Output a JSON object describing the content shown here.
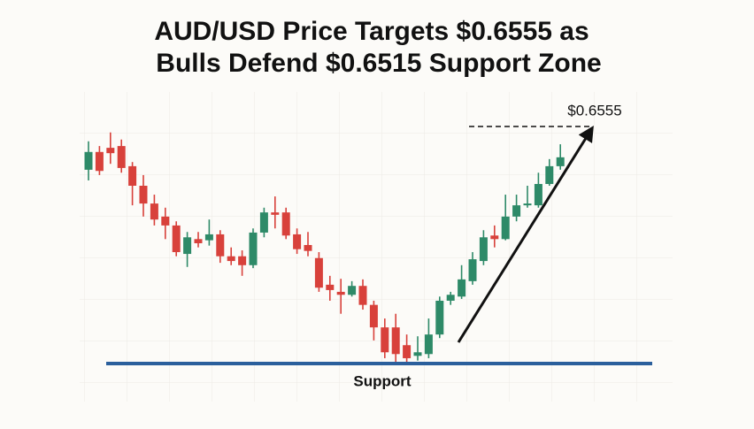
{
  "chart_data": {
    "type": "candlestick",
    "title": [
      "AUD/USD Price Targets $0.6555 as",
      "Bulls Defend $0.6515 Support Zone"
    ],
    "ylim": [
      0.6513,
      0.6561
    ],
    "up_color": "#2e8a68",
    "down_color": "#d8413b",
    "open": [
      0.65477,
      0.65507,
      0.65514,
      0.65517,
      0.65483,
      0.6545,
      0.6542,
      0.65398,
      0.65383,
      0.65335,
      0.6536,
      0.65358,
      0.65368,
      0.65331,
      0.65331,
      0.65316,
      0.65371,
      0.65405,
      0.65405,
      0.65368,
      0.6535,
      0.65328,
      0.65283,
      0.65271,
      0.65266,
      0.65281,
      0.65249,
      0.65211,
      0.65211,
      0.65181,
      0.65163,
      0.65166,
      0.65199,
      0.65256,
      0.65263,
      0.65289,
      0.65323,
      0.65366,
      0.6536,
      0.65398,
      0.65417,
      0.65417,
      0.65453,
      0.65483
    ],
    "high": [
      0.65525,
      0.65517,
      0.6554,
      0.65528,
      0.6549,
      0.65468,
      0.65435,
      0.65413,
      0.6539,
      0.65372,
      0.65372,
      0.65393,
      0.65375,
      0.65346,
      0.65341,
      0.65378,
      0.65413,
      0.65432,
      0.65413,
      0.65378,
      0.65372,
      0.65338,
      0.65298,
      0.65293,
      0.65289,
      0.65292,
      0.65256,
      0.65226,
      0.65234,
      0.65199,
      0.65196,
      0.65226,
      0.65263,
      0.65271,
      0.65316,
      0.65338,
      0.65375,
      0.65383,
      0.65435,
      0.65435,
      0.6545,
      0.65472,
      0.65495,
      0.6552
    ],
    "low": [
      0.65459,
      0.65468,
      0.65487,
      0.65472,
      0.65417,
      0.65398,
      0.65383,
      0.6536,
      0.65331,
      0.65313,
      0.65346,
      0.65349,
      0.6532,
      0.65316,
      0.65298,
      0.65311,
      0.65363,
      0.65378,
      0.6536,
      0.65335,
      0.65331,
      0.65271,
      0.65256,
      0.65234,
      0.65263,
      0.65241,
      0.65189,
      0.65159,
      0.65152,
      0.65152,
      0.65155,
      0.65159,
      0.65193,
      0.65249,
      0.65259,
      0.65283,
      0.65316,
      0.65346,
      0.65358,
      0.6539,
      0.65413,
      0.65413,
      0.6545,
      0.65477
    ],
    "close": [
      0.65507,
      0.65475,
      0.65505,
      0.6548,
      0.6545,
      0.6542,
      0.65393,
      0.65383,
      0.65338,
      0.65363,
      0.65353,
      0.65368,
      0.65331,
      0.65323,
      0.65316,
      0.65371,
      0.65405,
      0.65401,
      0.65366,
      0.65343,
      0.6534,
      0.65278,
      0.65274,
      0.65266,
      0.65281,
      0.65249,
      0.65211,
      0.65169,
      0.65166,
      0.65159,
      0.65169,
      0.65199,
      0.65256,
      0.65266,
      0.65292,
      0.65326,
      0.65363,
      0.6536,
      0.65398,
      0.65417,
      0.6542,
      0.65453,
      0.65483,
      0.65498
    ],
    "support": {
      "value": 0.6515,
      "label": "Support",
      "color": "#2b5f9c"
    },
    "target": {
      "value": 0.6555,
      "label": "$0.6555"
    }
  }
}
